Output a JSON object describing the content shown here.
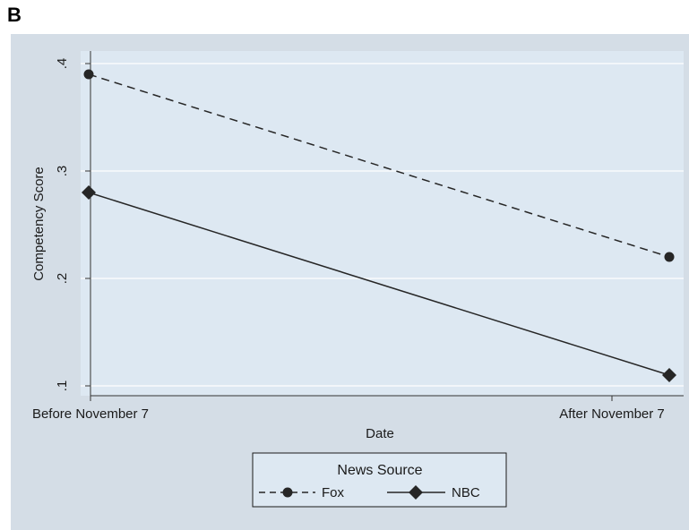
{
  "panel_label": "B",
  "colors": {
    "frame_bg": "#d4dde6",
    "plot_bg": "#dde8f2",
    "grid": "#ffffff",
    "line": "#262626",
    "text": "#1a1a1a"
  },
  "chart_data": {
    "type": "line",
    "title": "",
    "xlabel": "Date",
    "ylabel": "Competency Score",
    "categories": [
      "Before November 7",
      "After November 7"
    ],
    "ylim": [
      0.1,
      0.4
    ],
    "yticks": [
      0.1,
      0.2,
      0.3,
      0.4
    ],
    "ytick_labels": [
      ".1",
      ".2",
      ".3",
      ".4"
    ],
    "grid": true,
    "legend": {
      "title": "News Source",
      "placement": "bottom-center"
    },
    "series": [
      {
        "name": "Fox",
        "values": [
          0.39,
          0.22
        ],
        "line_style": "dashed",
        "marker": "circle"
      },
      {
        "name": "NBC",
        "values": [
          0.28,
          0.11
        ],
        "line_style": "solid",
        "marker": "diamond"
      }
    ]
  }
}
